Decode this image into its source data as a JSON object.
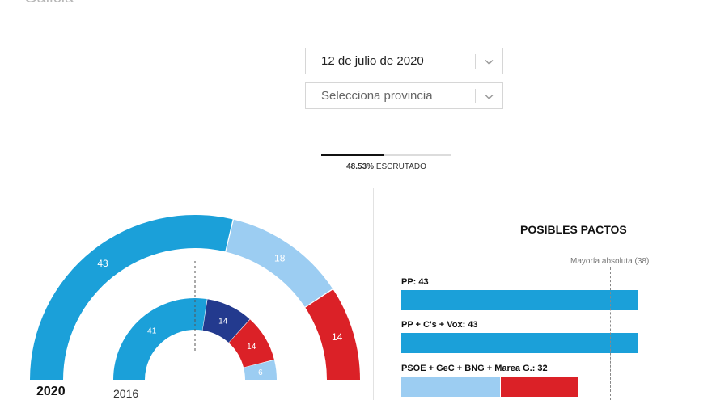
{
  "header": {
    "region_title": "Galicia"
  },
  "filters": {
    "date_select": {
      "value": "12 de julio de 2020"
    },
    "province_select": {
      "placeholder": "Selecciona provincia"
    }
  },
  "progress": {
    "percent": 48.53,
    "value_text": "48.53%",
    "label": "ESCRUTADO"
  },
  "colors": {
    "pp": "#1ba0d9",
    "ps_light": "#9ccdf2",
    "bng": "#db2127",
    "ps_dark": "#233a8e",
    "background": "#ffffff"
  },
  "hemicycle": {
    "total_seats": 75,
    "current": {
      "year_label": "2020",
      "segments": [
        {
          "seats": 43,
          "label": "43",
          "color": "#1ba0d9"
        },
        {
          "seats": 18,
          "label": "18",
          "color": "#9ccdf2"
        },
        {
          "seats": 14,
          "label": "14",
          "color": "#db2127"
        }
      ]
    },
    "previous": {
      "year_label": "2016",
      "segments": [
        {
          "seats": 41,
          "label": "41",
          "color": "#1ba0d9"
        },
        {
          "seats": 14,
          "label": "14",
          "color": "#233a8e"
        },
        {
          "seats": 14,
          "label": "14",
          "color": "#db2127"
        },
        {
          "seats": 6,
          "label": "6",
          "color": "#9ccdf2"
        }
      ]
    }
  },
  "pactos": {
    "title": "POSIBLES PACTOS",
    "majority_label": "Mayoría absoluta (38)",
    "majority_seats": 38,
    "scale_max": 43,
    "items": [
      {
        "label": "PP: 43",
        "segments": [
          {
            "seats": 43,
            "color": "#1ba0d9"
          }
        ]
      },
      {
        "label": "PP + C's + Vox: 43",
        "segments": [
          {
            "seats": 43,
            "color": "#1ba0d9"
          }
        ]
      },
      {
        "label": "PSOE + GeC + BNG + Marea G.: 32",
        "segments": [
          {
            "seats": 18,
            "color": "#9ccdf2"
          },
          {
            "seats": 14,
            "color": "#db2127"
          }
        ]
      }
    ]
  }
}
